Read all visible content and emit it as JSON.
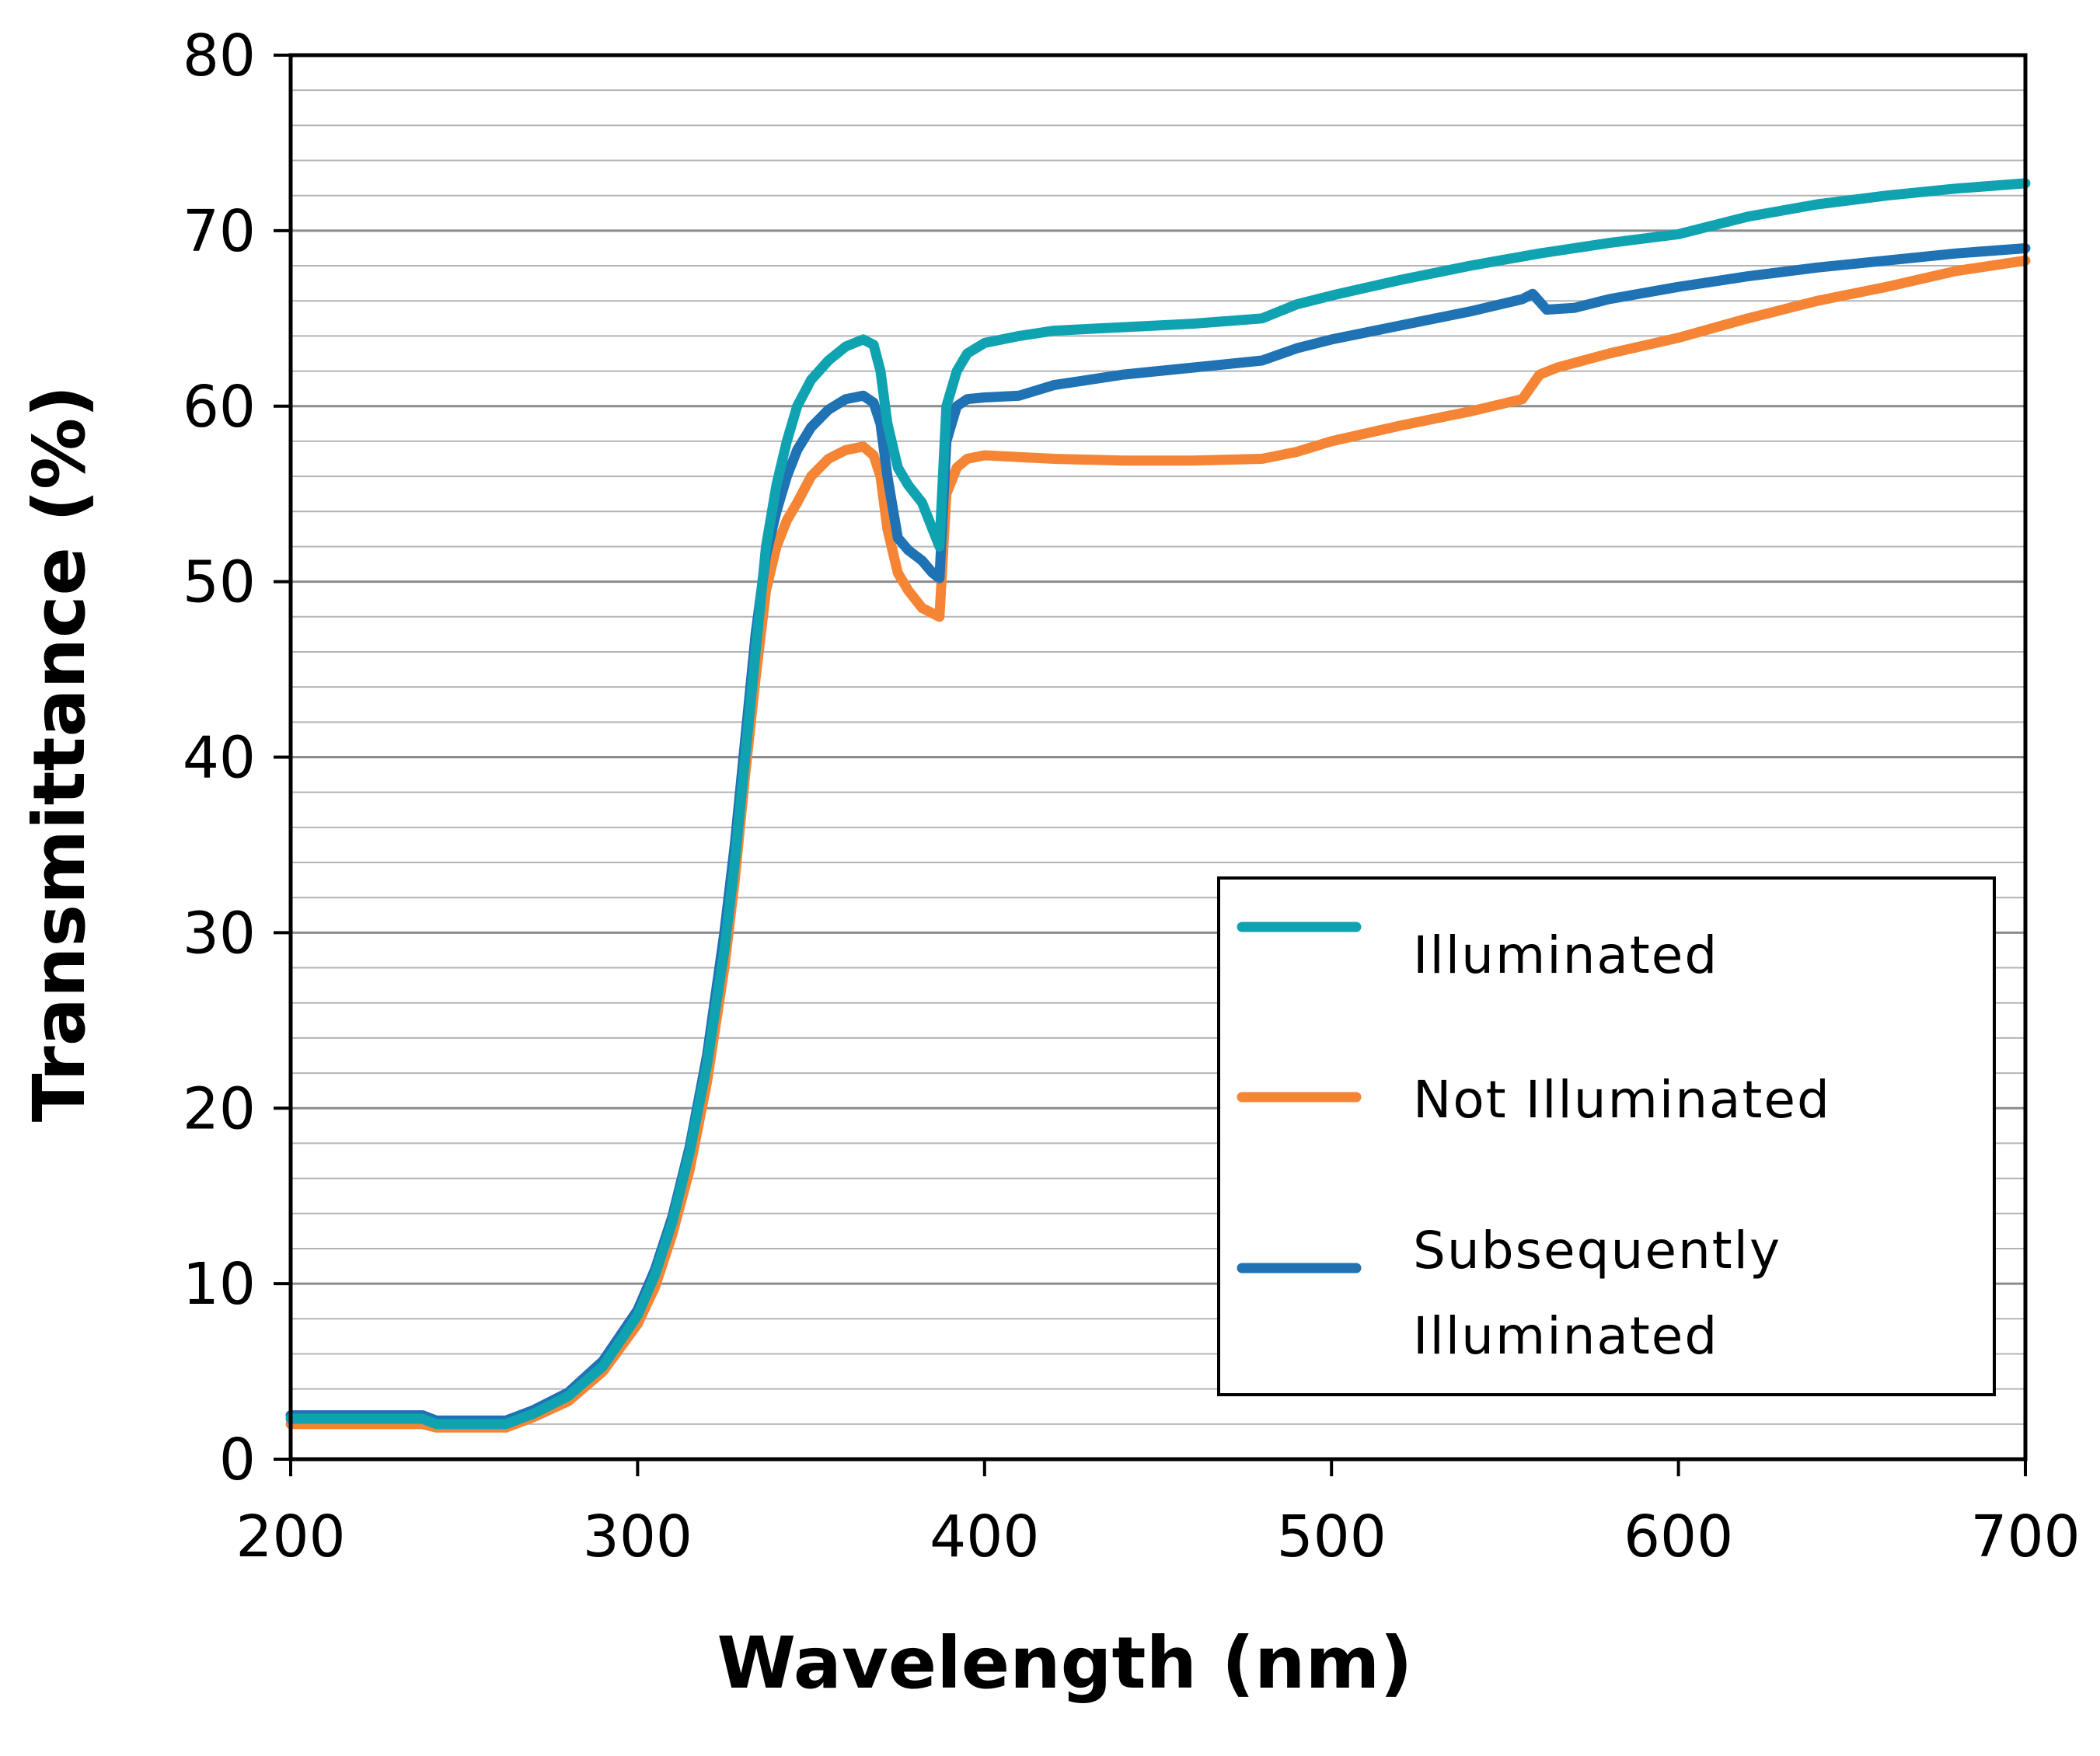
{
  "chart_data": {
    "type": "line",
    "title": "",
    "xlabel": "Wavelength (nm)",
    "ylabel": "Transmittance (%)",
    "xlim": [
      200,
      700
    ],
    "ylim": [
      0,
      80
    ],
    "x_ticks": [
      200,
      300,
      400,
      500,
      600,
      700
    ],
    "y_ticks": [
      0,
      10,
      20,
      30,
      40,
      50,
      60,
      70,
      80
    ],
    "y_minor_step": 2,
    "grid": true,
    "legend_position": "bottom-right",
    "series": [
      {
        "name": "Illuminated",
        "color": "#0fa3b1",
        "points": [
          [
            200,
            2.3
          ],
          [
            238,
            2.3
          ],
          [
            242,
            2.0
          ],
          [
            262,
            2.0
          ],
          [
            270,
            2.6
          ],
          [
            280,
            3.6
          ],
          [
            290,
            5.3
          ],
          [
            300,
            8.2
          ],
          [
            305,
            10.5
          ],
          [
            310,
            13.5
          ],
          [
            315,
            17.5
          ],
          [
            320,
            22.5
          ],
          [
            325,
            29
          ],
          [
            328,
            34
          ],
          [
            331,
            40
          ],
          [
            334,
            46
          ],
          [
            337,
            52
          ],
          [
            340,
            55.5
          ],
          [
            343,
            58
          ],
          [
            346,
            60
          ],
          [
            350,
            61.5
          ],
          [
            355,
            62.6
          ],
          [
            360,
            63.4
          ],
          [
            365,
            63.8
          ],
          [
            368,
            63.5
          ],
          [
            370,
            62
          ],
          [
            372,
            59
          ],
          [
            375,
            56.5
          ],
          [
            378,
            55.5
          ],
          [
            382,
            54.5
          ],
          [
            385,
            53
          ],
          [
            387,
            52
          ],
          [
            389,
            60
          ],
          [
            392,
            62
          ],
          [
            395,
            63
          ],
          [
            400,
            63.6
          ],
          [
            410,
            64
          ],
          [
            420,
            64.3
          ],
          [
            440,
            64.5
          ],
          [
            460,
            64.7
          ],
          [
            480,
            65
          ],
          [
            490,
            65.8
          ],
          [
            500,
            66.3
          ],
          [
            520,
            67.2
          ],
          [
            540,
            68
          ],
          [
            560,
            68.7
          ],
          [
            580,
            69.3
          ],
          [
            600,
            69.8
          ],
          [
            620,
            70.8
          ],
          [
            640,
            71.5
          ],
          [
            660,
            72
          ],
          [
            680,
            72.4
          ],
          [
            700,
            72.7
          ]
        ]
      },
      {
        "name": "Not Illuminated",
        "color": "#f58535",
        "points": [
          [
            200,
            2.0
          ],
          [
            238,
            2.0
          ],
          [
            242,
            1.8
          ],
          [
            262,
            1.8
          ],
          [
            270,
            2.4
          ],
          [
            280,
            3.3
          ],
          [
            290,
            5.0
          ],
          [
            300,
            7.7
          ],
          [
            305,
            9.8
          ],
          [
            310,
            12.8
          ],
          [
            315,
            16.5
          ],
          [
            320,
            21.5
          ],
          [
            325,
            28
          ],
          [
            328,
            33
          ],
          [
            331,
            39
          ],
          [
            334,
            44.5
          ],
          [
            337,
            49.5
          ],
          [
            340,
            52
          ],
          [
            343,
            53.5
          ],
          [
            346,
            54.5
          ],
          [
            350,
            56
          ],
          [
            355,
            57
          ],
          [
            360,
            57.5
          ],
          [
            365,
            57.7
          ],
          [
            368,
            57.2
          ],
          [
            370,
            56
          ],
          [
            372,
            53
          ],
          [
            375,
            50.5
          ],
          [
            378,
            49.5
          ],
          [
            382,
            48.5
          ],
          [
            385,
            48.2
          ],
          [
            387,
            48
          ],
          [
            389,
            55
          ],
          [
            392,
            56.5
          ],
          [
            395,
            57
          ],
          [
            400,
            57.2
          ],
          [
            410,
            57.1
          ],
          [
            420,
            57.0
          ],
          [
            440,
            56.9
          ],
          [
            460,
            56.9
          ],
          [
            480,
            57.0
          ],
          [
            490,
            57.4
          ],
          [
            500,
            58.0
          ],
          [
            520,
            58.9
          ],
          [
            540,
            59.7
          ],
          [
            555,
            60.4
          ],
          [
            560,
            61.8
          ],
          [
            565,
            62.2
          ],
          [
            580,
            63.0
          ],
          [
            600,
            63.9
          ],
          [
            620,
            65.0
          ],
          [
            640,
            66.0
          ],
          [
            660,
            66.8
          ],
          [
            680,
            67.7
          ],
          [
            700,
            68.3
          ]
        ]
      },
      {
        "name": "Subsequently Illuminated",
        "color": "#1f72b4",
        "points": [
          [
            200,
            2.5
          ],
          [
            238,
            2.5
          ],
          [
            242,
            2.2
          ],
          [
            262,
            2.2
          ],
          [
            270,
            2.8
          ],
          [
            280,
            3.8
          ],
          [
            290,
            5.6
          ],
          [
            300,
            8.5
          ],
          [
            305,
            10.8
          ],
          [
            310,
            13.8
          ],
          [
            315,
            17.8
          ],
          [
            320,
            23
          ],
          [
            325,
            30
          ],
          [
            328,
            35
          ],
          [
            331,
            41
          ],
          [
            334,
            47
          ],
          [
            337,
            51.5
          ],
          [
            340,
            54
          ],
          [
            343,
            56
          ],
          [
            346,
            57.5
          ],
          [
            350,
            58.8
          ],
          [
            355,
            59.8
          ],
          [
            360,
            60.4
          ],
          [
            365,
            60.6
          ],
          [
            368,
            60.2
          ],
          [
            370,
            59
          ],
          [
            372,
            56
          ],
          [
            375,
            52.5
          ],
          [
            378,
            51.8
          ],
          [
            382,
            51.2
          ],
          [
            385,
            50.5
          ],
          [
            387,
            50.2
          ],
          [
            389,
            58
          ],
          [
            392,
            60
          ],
          [
            395,
            60.4
          ],
          [
            400,
            60.5
          ],
          [
            410,
            60.6
          ],
          [
            420,
            61.2
          ],
          [
            440,
            61.8
          ],
          [
            460,
            62.2
          ],
          [
            480,
            62.6
          ],
          [
            490,
            63.3
          ],
          [
            500,
            63.8
          ],
          [
            520,
            64.6
          ],
          [
            540,
            65.4
          ],
          [
            555,
            66.1
          ],
          [
            558,
            66.4
          ],
          [
            562,
            65.5
          ],
          [
            570,
            65.6
          ],
          [
            580,
            66.1
          ],
          [
            600,
            66.8
          ],
          [
            620,
            67.4
          ],
          [
            640,
            67.9
          ],
          [
            660,
            68.3
          ],
          [
            680,
            68.7
          ],
          [
            700,
            69.0
          ]
        ]
      }
    ]
  }
}
